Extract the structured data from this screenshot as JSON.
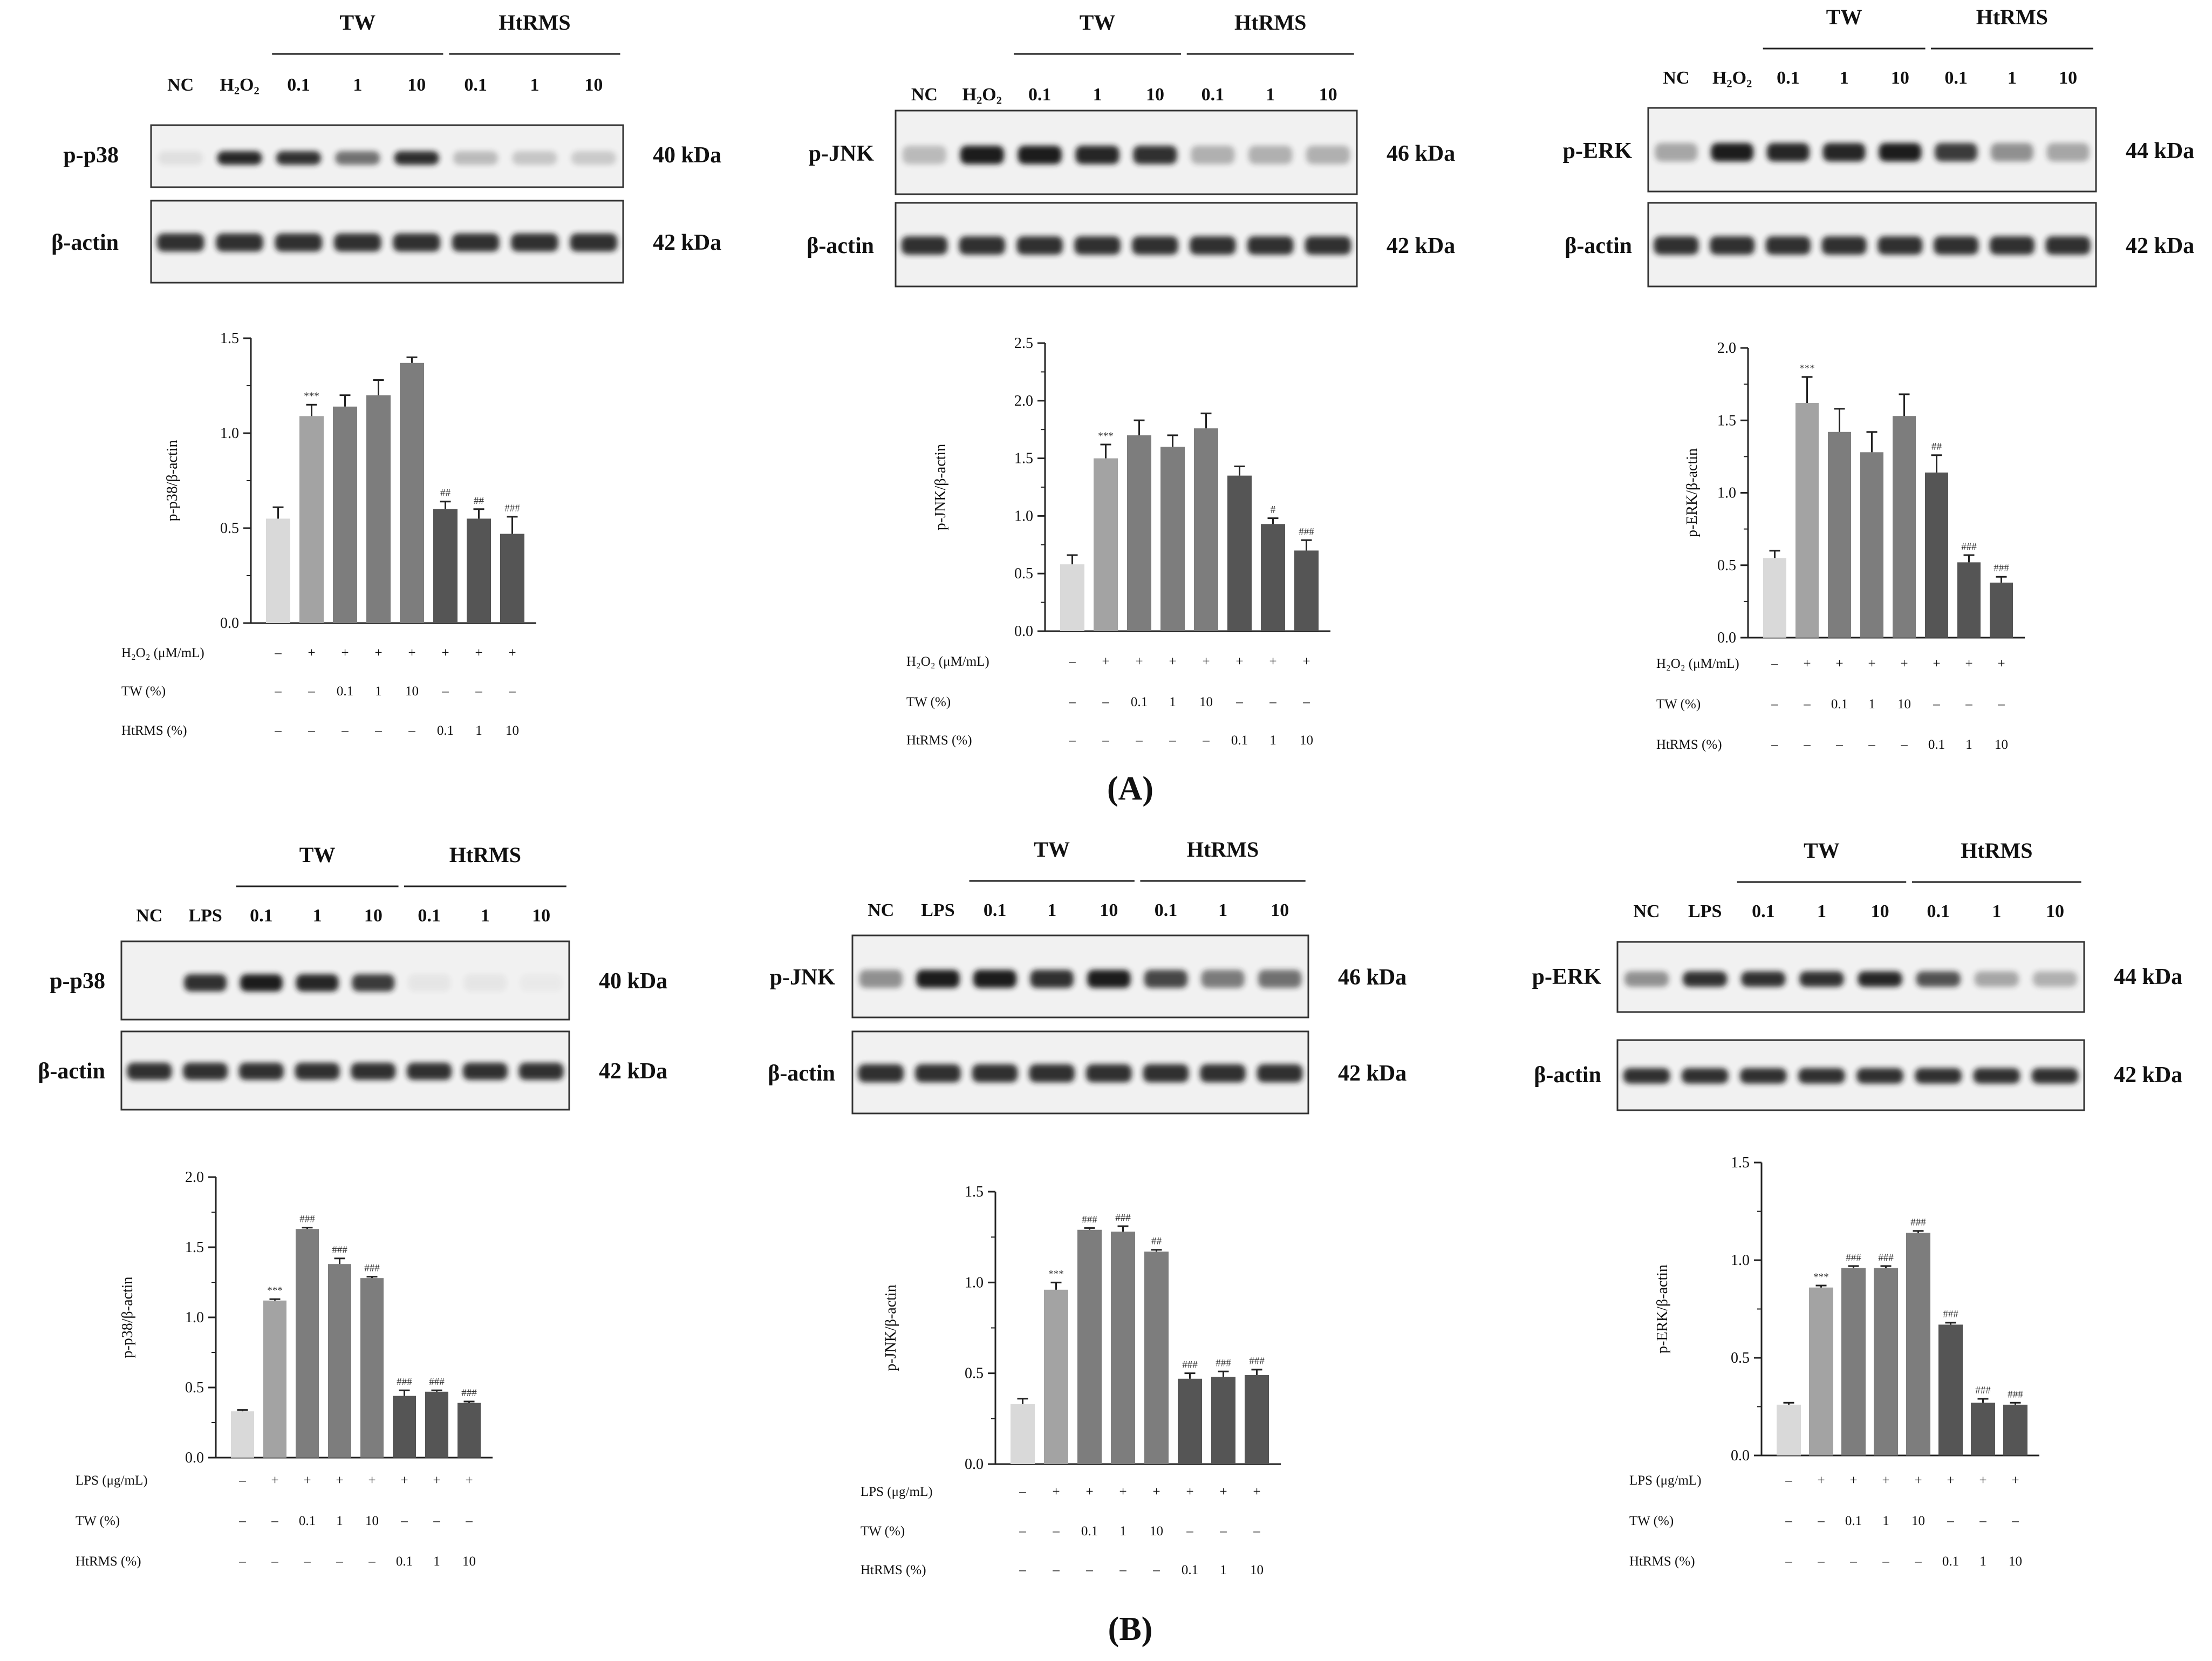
{
  "figure": {
    "panel_labels": [
      "(A)",
      "(B)"
    ],
    "blot_group_labels": {
      "tw": "TW",
      "htrms": "HtRMS"
    },
    "loading_control": {
      "label": "β-actin",
      "kda": "42 kDa"
    }
  },
  "blots": [
    {
      "target": "p-p38",
      "kda": "40 kDa",
      "lanes": [
        "NC",
        "H₂O₂",
        "0.1",
        "1",
        "10",
        "0.1",
        "1",
        "10"
      ]
    },
    {
      "target": "p-JNK",
      "kda": "46 kDa",
      "lanes": [
        "NC",
        "H₂O₂",
        "0.1",
        "1",
        "10",
        "0.1",
        "1",
        "10"
      ]
    },
    {
      "target": "p-ERK",
      "kda": "44 kDa",
      "lanes": [
        "NC",
        "H₂O₂",
        "0.1",
        "1",
        "10",
        "0.1",
        "1",
        "10"
      ]
    },
    {
      "target": "p-p38",
      "kda": "40 kDa",
      "lanes": [
        "NC",
        "LPS",
        "0.1",
        "1",
        "10",
        "0.1",
        "1",
        "10"
      ]
    },
    {
      "target": "p-JNK",
      "kda": "46 kDa",
      "lanes": [
        "NC",
        "LPS",
        "0.1",
        "1",
        "10",
        "0.1",
        "1",
        "10"
      ]
    },
    {
      "target": "p-ERK",
      "kda": "44 kDa",
      "lanes": [
        "NC",
        "LPS",
        "0.1",
        "1",
        "10",
        "0.1",
        "1",
        "10"
      ]
    }
  ],
  "chart_data": [
    {
      "type": "bar",
      "panel": "A",
      "ylabel": "p-p38/β-actin",
      "ylim": [
        0,
        1.5
      ],
      "yticks": [
        "0.0",
        "0.5",
        "1.0",
        "1.5"
      ],
      "categories": [
        "NC",
        "H2O2",
        "TW 0.1",
        "TW 1",
        "TW 10",
        "HtRMS 0.1",
        "HtRMS 1",
        "HtRMS 10"
      ],
      "values": [
        0.55,
        1.09,
        1.14,
        1.2,
        1.37,
        0.6,
        0.55,
        0.47
      ],
      "errors": [
        0.06,
        0.06,
        0.06,
        0.08,
        0.03,
        0.04,
        0.05,
        0.09
      ],
      "significance": [
        "",
        "***",
        "",
        "",
        "",
        "##",
        "##",
        "###"
      ],
      "conditions": [
        {
          "label": "H₂O₂ (μM/mL)",
          "values": [
            "–",
            "+",
            "+",
            "+",
            "+",
            "+",
            "+",
            "+"
          ]
        },
        {
          "label": "TW (%)",
          "values": [
            "–",
            "–",
            "0.1",
            "1",
            "10",
            "–",
            "–",
            "–"
          ]
        },
        {
          "label": "HtRMS (%)",
          "values": [
            "–",
            "–",
            "–",
            "–",
            "–",
            "0.1",
            "1",
            "10"
          ]
        }
      ]
    },
    {
      "type": "bar",
      "panel": "A",
      "ylabel": "p-JNK/β-actin",
      "ylim": [
        0,
        2.5
      ],
      "yticks": [
        "0.0",
        "0.5",
        "1.0",
        "1.5",
        "2.0",
        "2.5"
      ],
      "categories": [
        "NC",
        "H2O2",
        "TW 0.1",
        "TW 1",
        "TW 10",
        "HtRMS 0.1",
        "HtRMS 1",
        "HtRMS 10"
      ],
      "values": [
        0.58,
        1.5,
        1.7,
        1.6,
        1.76,
        1.35,
        0.93,
        0.7
      ],
      "errors": [
        0.08,
        0.12,
        0.13,
        0.1,
        0.13,
        0.08,
        0.05,
        0.09
      ],
      "significance": [
        "",
        "***",
        "",
        "",
        "",
        "",
        "#",
        "###"
      ],
      "conditions": [
        {
          "label": "H₂O₂ (μM/mL)",
          "values": [
            "–",
            "+",
            "+",
            "+",
            "+",
            "+",
            "+",
            "+"
          ]
        },
        {
          "label": "TW (%)",
          "values": [
            "–",
            "–",
            "0.1",
            "1",
            "10",
            "–",
            "–",
            "–"
          ]
        },
        {
          "label": "HtRMS (%)",
          "values": [
            "–",
            "–",
            "–",
            "–",
            "–",
            "0.1",
            "1",
            "10"
          ]
        }
      ]
    },
    {
      "type": "bar",
      "panel": "A",
      "ylabel": "p-ERK/β-actin",
      "ylim": [
        0,
        2.0
      ],
      "yticks": [
        "0.0",
        "0.5",
        "1.0",
        "1.5",
        "2.0"
      ],
      "categories": [
        "NC",
        "H2O2",
        "TW 0.1",
        "TW 1",
        "TW 10",
        "HtRMS 0.1",
        "HtRMS 1",
        "HtRMS 10"
      ],
      "values": [
        0.55,
        1.62,
        1.42,
        1.28,
        1.53,
        1.14,
        0.52,
        0.38
      ],
      "errors": [
        0.05,
        0.18,
        0.16,
        0.14,
        0.15,
        0.12,
        0.05,
        0.04
      ],
      "significance": [
        "",
        "***",
        "",
        "",
        "",
        "##",
        "###",
        "###"
      ],
      "conditions": [
        {
          "label": "H₂O₂ (μM/mL)",
          "values": [
            "–",
            "+",
            "+",
            "+",
            "+",
            "+",
            "+",
            "+"
          ]
        },
        {
          "label": "TW (%)",
          "values": [
            "–",
            "–",
            "0.1",
            "1",
            "10",
            "–",
            "–",
            "–"
          ]
        },
        {
          "label": "HtRMS (%)",
          "values": [
            "–",
            "–",
            "–",
            "–",
            "–",
            "0.1",
            "1",
            "10"
          ]
        }
      ]
    },
    {
      "type": "bar",
      "panel": "B",
      "ylabel": "p-p38/β-actin",
      "ylim": [
        0,
        2.0
      ],
      "yticks": [
        "0.0",
        "0.5",
        "1.0",
        "1.5",
        "2.0"
      ],
      "categories": [
        "NC",
        "LPS",
        "TW 0.1",
        "TW 1",
        "TW 10",
        "HtRMS 0.1",
        "HtRMS 1",
        "HtRMS 10"
      ],
      "values": [
        0.33,
        1.12,
        1.63,
        1.38,
        1.28,
        0.44,
        0.47,
        0.39
      ],
      "errors": [
        0.01,
        0.01,
        0.01,
        0.04,
        0.01,
        0.04,
        0.01,
        0.01
      ],
      "significance": [
        "",
        "***",
        "###",
        "###",
        "###",
        "###",
        "###",
        "###"
      ],
      "conditions": [
        {
          "label": "LPS (μg/mL)",
          "values": [
            "–",
            "+",
            "+",
            "+",
            "+",
            "+",
            "+",
            "+"
          ]
        },
        {
          "label": "TW (%)",
          "values": [
            "–",
            "–",
            "0.1",
            "1",
            "10",
            "–",
            "–",
            "–"
          ]
        },
        {
          "label": "HtRMS (%)",
          "values": [
            "–",
            "–",
            "–",
            "–",
            "–",
            "0.1",
            "1",
            "10"
          ]
        }
      ]
    },
    {
      "type": "bar",
      "panel": "B",
      "ylabel": "p-JNK/β-actin",
      "ylim": [
        0,
        1.5
      ],
      "yticks": [
        "0.0",
        "0.5",
        "1.0",
        "1.5"
      ],
      "categories": [
        "NC",
        "LPS",
        "TW 0.1",
        "TW 1",
        "TW 10",
        "HtRMS 0.1",
        "HtRMS 1",
        "HtRMS 10"
      ],
      "values": [
        0.33,
        0.96,
        1.29,
        1.28,
        1.17,
        0.47,
        0.48,
        0.49
      ],
      "errors": [
        0.03,
        0.04,
        0.01,
        0.03,
        0.01,
        0.03,
        0.03,
        0.03
      ],
      "significance": [
        "",
        "***",
        "###",
        "###",
        "##",
        "###",
        "###",
        "###"
      ],
      "conditions": [
        {
          "label": "LPS (μg/mL)",
          "values": [
            "–",
            "+",
            "+",
            "+",
            "+",
            "+",
            "+",
            "+"
          ]
        },
        {
          "label": "TW (%)",
          "values": [
            "–",
            "–",
            "0.1",
            "1",
            "10",
            "–",
            "–",
            "–"
          ]
        },
        {
          "label": "HtRMS (%)",
          "values": [
            "–",
            "–",
            "–",
            "–",
            "–",
            "0.1",
            "1",
            "10"
          ]
        }
      ]
    },
    {
      "type": "bar",
      "panel": "B",
      "ylabel": "p-ERK/β-actin",
      "ylim": [
        0,
        1.5
      ],
      "yticks": [
        "0.0",
        "0.5",
        "1.0",
        "1.5"
      ],
      "categories": [
        "NC",
        "LPS",
        "TW 0.1",
        "TW 1",
        "TW 10",
        "HtRMS 0.1",
        "HtRMS 1",
        "HtRMS 10"
      ],
      "values": [
        0.26,
        0.86,
        0.96,
        0.96,
        1.14,
        0.67,
        0.27,
        0.26
      ],
      "errors": [
        0.01,
        0.01,
        0.01,
        0.01,
        0.01,
        0.01,
        0.02,
        0.01
      ],
      "significance": [
        "",
        "***",
        "###",
        "###",
        "###",
        "###",
        "###",
        "###"
      ],
      "conditions": [
        {
          "label": "LPS (μg/mL)",
          "values": [
            "–",
            "+",
            "+",
            "+",
            "+",
            "+",
            "+",
            "+"
          ]
        },
        {
          "label": "TW (%)",
          "values": [
            "–",
            "–",
            "0.1",
            "1",
            "10",
            "–",
            "–",
            "–"
          ]
        },
        {
          "label": "HtRMS (%)",
          "values": [
            "–",
            "–",
            "–",
            "–",
            "–",
            "0.1",
            "1",
            "10"
          ]
        }
      ]
    }
  ],
  "colors": {
    "bar_nc": "#d9d9d9",
    "bar_stim": "#a3a3a3",
    "bar_tw": "#7d7d7d",
    "bar_htrms": "#555555",
    "band": "#1a1a1a",
    "blot_bg": "#f1f1f1"
  }
}
